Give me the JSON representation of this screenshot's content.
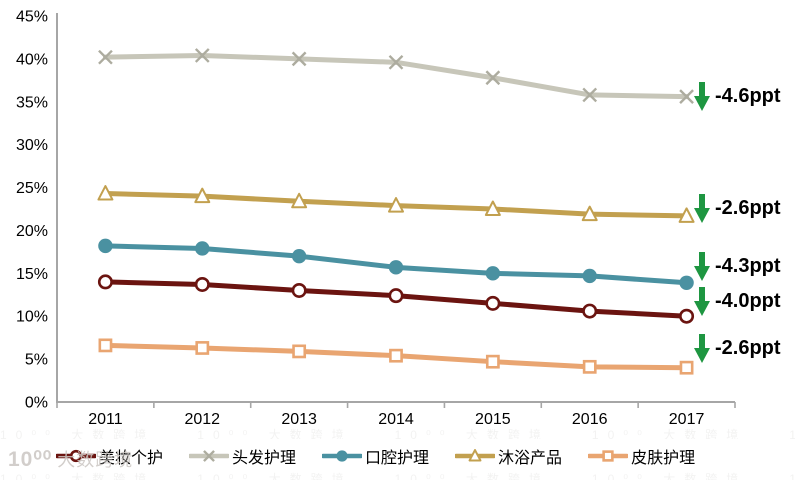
{
  "watermark": {
    "logo": "10⁰⁰",
    "text": "大数跨境"
  },
  "chart_data": {
    "type": "line",
    "categories": [
      "2011",
      "2012",
      "2013",
      "2014",
      "2015",
      "2016",
      "2017"
    ],
    "y_axis": {
      "tick_labels": [
        "0%",
        "5%",
        "10%",
        "15%",
        "20%",
        "25%",
        "30%",
        "35%",
        "40%",
        "45%"
      ],
      "min": 0,
      "max": 45,
      "step": 5
    },
    "grid": false,
    "legend_position": "bottom",
    "series": [
      {
        "name": "美妆个护",
        "color": "#6B1410",
        "marker": "circle-open",
        "marker_color": "#6B1410",
        "values": [
          14.0,
          13.7,
          13.0,
          12.4,
          11.5,
          10.6,
          10.0
        ],
        "change": "-4.0ppt"
      },
      {
        "name": "头发护理",
        "color": "#C7C6B9",
        "marker": "x",
        "marker_color": "#ADAC9F",
        "values": [
          40.2,
          40.4,
          40.0,
          39.6,
          37.8,
          35.8,
          35.6
        ],
        "change": "-4.6ppt"
      },
      {
        "name": "口腔护理",
        "color": "#4A91A1",
        "marker": "circle-filled",
        "marker_color": "#4A91A1",
        "values": [
          18.2,
          17.9,
          17.0,
          15.7,
          15.0,
          14.7,
          13.9
        ],
        "change": "-4.3ppt"
      },
      {
        "name": "沐浴产品",
        "color": "#C2A04F",
        "marker": "triangle-open",
        "marker_color": "#C2A04F",
        "values": [
          24.3,
          24.0,
          23.4,
          22.9,
          22.5,
          21.9,
          21.7
        ],
        "change": "-2.6ppt"
      },
      {
        "name": "皮肤护理",
        "color": "#E9A571",
        "marker": "square-open",
        "marker_color": "#E9A571",
        "values": [
          6.6,
          6.3,
          5.9,
          5.4,
          4.7,
          4.1,
          4.0
        ],
        "change": "-2.6ppt"
      }
    ],
    "annotations": [
      {
        "series": "头发护理",
        "label": "-4.6ppt"
      },
      {
        "series": "沐浴产品",
        "label": "-2.6ppt"
      },
      {
        "series": "口腔护理",
        "label": "-4.3ppt"
      },
      {
        "series": "美妆个护",
        "label": "-4.0ppt"
      },
      {
        "series": "皮肤护理",
        "label": "-2.6ppt"
      }
    ],
    "annotation_color": "#1E9641",
    "axis_color": "#A6A6A6"
  }
}
